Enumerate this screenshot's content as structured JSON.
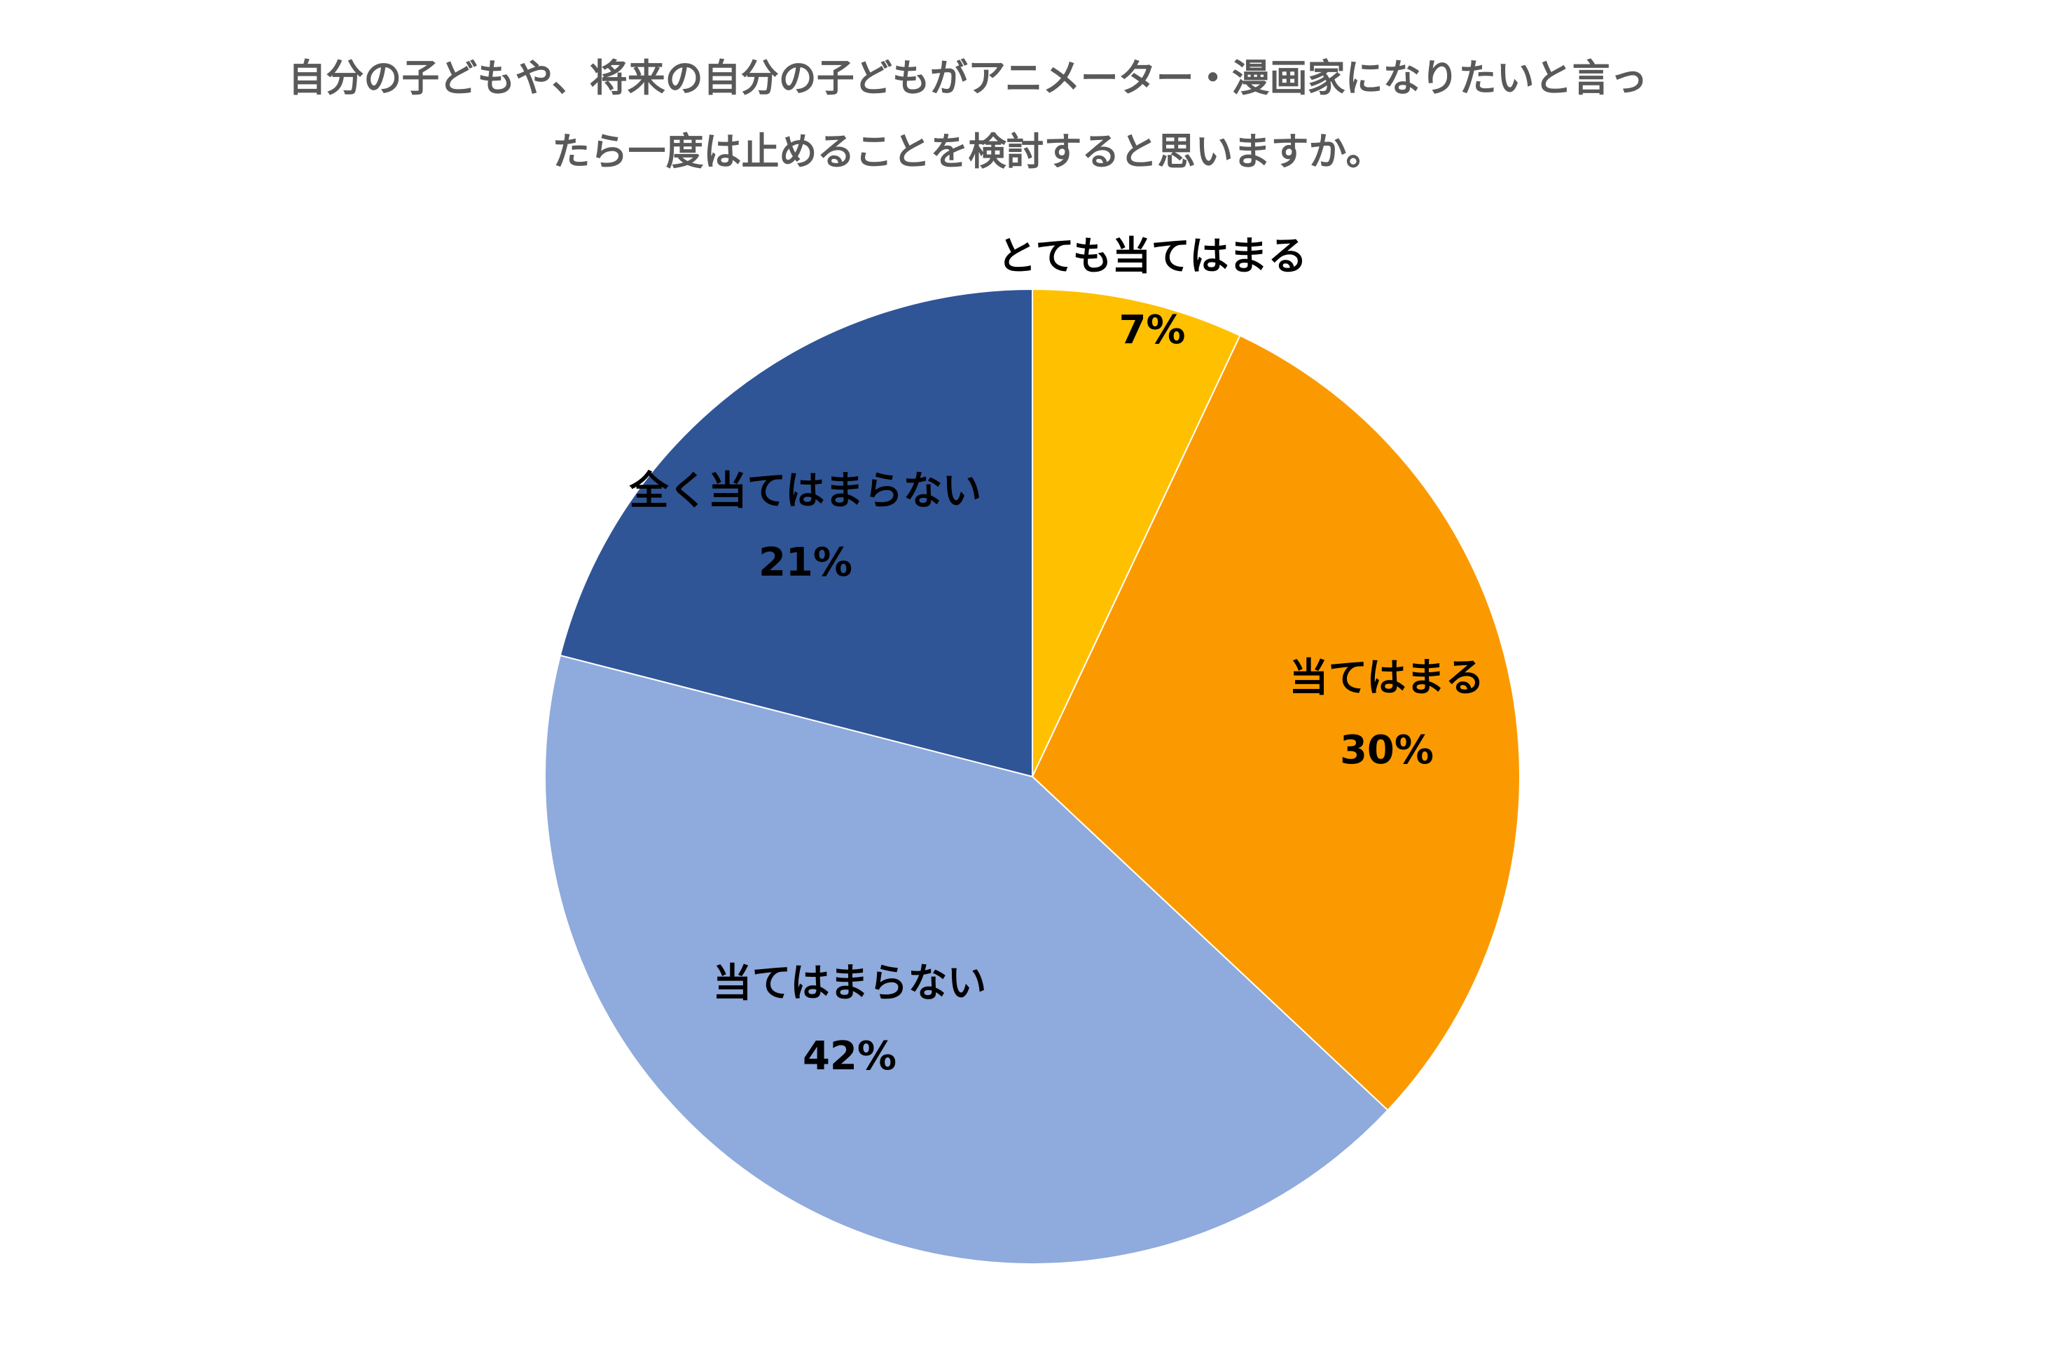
{
  "chart_data": {
    "type": "pie",
    "title": [
      "自分の子どもや、将来の自分の子どもがアニメーター・漫画家になりたいと言っ",
      "たら一度は止めることを検討すると思いますか。"
    ],
    "categories": [
      "とても当てはまる",
      "当てはまる",
      "当てはまらない",
      "全く当てはまらない"
    ],
    "values": [
      7,
      30,
      42,
      21
    ],
    "value_labels": [
      "7%",
      "30%",
      "42%",
      "21%"
    ],
    "colors": [
      "#FFC000",
      "#FB9A00",
      "#8FAADC",
      "#2F5597"
    ]
  }
}
